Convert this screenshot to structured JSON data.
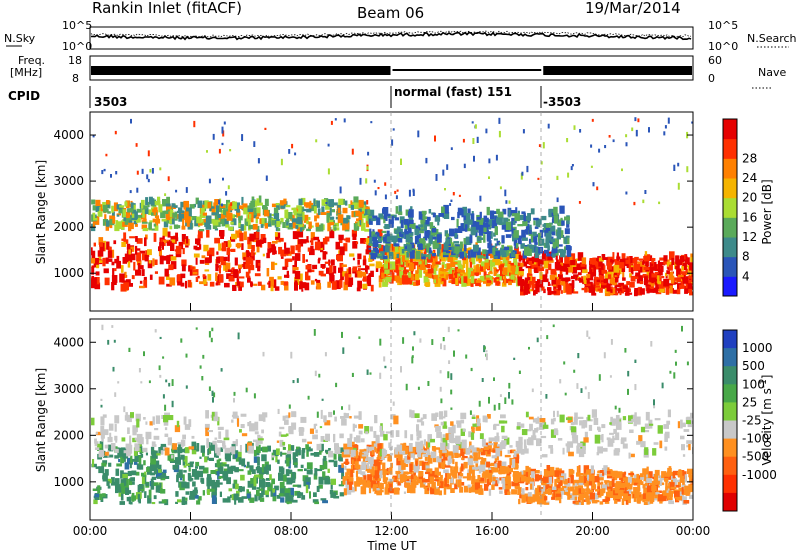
{
  "header": {
    "station": "Rankin Inlet (fitACF)",
    "beam": "Beam 06",
    "date": "19/Mar/2014"
  },
  "strip_panels": {
    "nsky_label": "N.Sky",
    "nsearch_label": "N.Search",
    "nsky_ticks": [
      "10^5",
      "10^0"
    ],
    "nsearch_ticks": [
      "10^5",
      "10^0"
    ],
    "freq_label_line1": "Freq.",
    "freq_label_line2": "[MHz]",
    "freq_ticks": [
      "18",
      "8"
    ],
    "nave_label": "Nave",
    "nave_ticks": [
      "60",
      "0"
    ],
    "cpid_label": "CPID",
    "cpid_segments": [
      {
        "label": "3503",
        "start_hour": 0,
        "end_hour": 12
      },
      {
        "label": "normal (fast) 151",
        "start_hour": 12,
        "end_hour": 18
      },
      {
        "label": "-3503",
        "start_hour": 18,
        "end_hour": 24
      }
    ]
  },
  "chart_data": [
    {
      "type": "heatmap",
      "name": "power",
      "ylabel": "Slant Range [km]",
      "ylim": [
        180,
        4500
      ],
      "yticks": [
        1000,
        2000,
        3000,
        4000
      ],
      "xlim_hours": [
        0,
        24
      ],
      "colorbar": {
        "label": "Power [dB]",
        "ticks": [
          "4",
          "8",
          "12",
          "16",
          "20",
          "24",
          "28"
        ],
        "range": [
          0,
          30
        ],
        "colors": [
          "#1a1aff",
          "#2a55b8",
          "#3d8a8a",
          "#5aaa5a",
          "#aadd33",
          "#f5b400",
          "#ff8000",
          "#ff3000",
          "#e60000"
        ]
      },
      "bands": [
        {
          "time_hours": [
            0,
            11.5
          ],
          "range_km": [
            600,
            1800
          ],
          "level": "high"
        },
        {
          "time_hours": [
            11.5,
            17
          ],
          "range_km": [
            700,
            1500
          ],
          "level": "medium-high"
        },
        {
          "time_hours": [
            17,
            24
          ],
          "range_km": [
            500,
            1300
          ],
          "level": "high"
        },
        {
          "time_hours": [
            0,
            11
          ],
          "range_km": [
            1900,
            2500
          ],
          "level": "medium"
        },
        {
          "time_hours": [
            11,
            19
          ],
          "range_km": [
            1300,
            2300
          ],
          "level": "low-medium"
        }
      ]
    },
    {
      "type": "heatmap",
      "name": "velocity",
      "ylabel": "Slant Range [km]",
      "ylim": [
        180,
        4500
      ],
      "yticks": [
        1000,
        2000,
        3000,
        4000
      ],
      "xlabel": "Time UT",
      "xticks": [
        "00:00",
        "04:00",
        "08:00",
        "12:00",
        "16:00",
        "20:00",
        "00:00"
      ],
      "xlim_hours": [
        0,
        24
      ],
      "colorbar": {
        "label": "Velocity [m s^-1]",
        "ticks": [
          "1000",
          "500",
          "100",
          "25",
          "-25",
          "-100",
          "-500",
          "-1000"
        ],
        "colors": [
          "#2040c0",
          "#2e6fa5",
          "#3a8c6a",
          "#48a848",
          "#7ccc3a",
          "#c8c8c8",
          "#ff9020",
          "#ff6010",
          "#ff3000",
          "#e00000"
        ]
      },
      "bands": [
        {
          "time_hours": [
            0,
            10
          ],
          "range_km": [
            500,
            1700
          ],
          "velocity": "100 to 500"
        },
        {
          "time_hours": [
            10,
            17
          ],
          "range_km": [
            700,
            1700
          ],
          "velocity": "-100 to -500"
        },
        {
          "time_hours": [
            17,
            24
          ],
          "range_km": [
            500,
            1200
          ],
          "velocity": "-100 to -500"
        },
        {
          "time_hours": [
            0,
            24
          ],
          "range_km": [
            1500,
            2400
          ],
          "velocity": "-25 to 25"
        }
      ]
    }
  ]
}
